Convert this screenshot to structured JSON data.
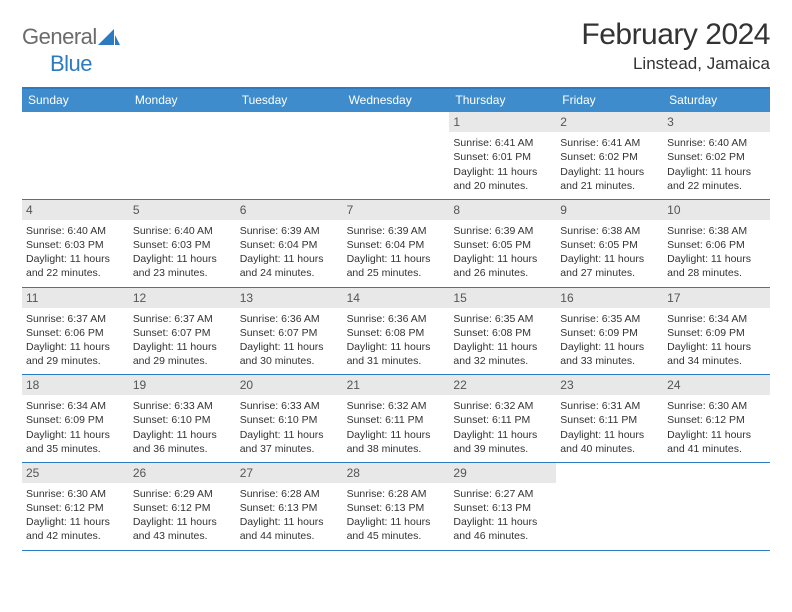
{
  "logo": {
    "general": "General",
    "blue": "Blue"
  },
  "title": "February 2024",
  "location": "Linstead, Jamaica",
  "dayNames": [
    "Sunday",
    "Monday",
    "Tuesday",
    "Wednesday",
    "Thursday",
    "Friday",
    "Saturday"
  ],
  "colors": {
    "header_bar": "#3e8ccc",
    "border": "#2c7bc0",
    "daynum_bg": "#e8e8e8",
    "text": "#333333",
    "logo_gray": "#6b6b6b",
    "logo_blue": "#2c7bc0",
    "background": "#ffffff"
  },
  "weeks": [
    [
      {
        "empty": true
      },
      {
        "empty": true
      },
      {
        "empty": true
      },
      {
        "empty": true
      },
      {
        "num": "1",
        "sunrise": "Sunrise: 6:41 AM",
        "sunset": "Sunset: 6:01 PM",
        "daylight": "Daylight: 11 hours and 20 minutes."
      },
      {
        "num": "2",
        "sunrise": "Sunrise: 6:41 AM",
        "sunset": "Sunset: 6:02 PM",
        "daylight": "Daylight: 11 hours and 21 minutes."
      },
      {
        "num": "3",
        "sunrise": "Sunrise: 6:40 AM",
        "sunset": "Sunset: 6:02 PM",
        "daylight": "Daylight: 11 hours and 22 minutes."
      }
    ],
    [
      {
        "num": "4",
        "sunrise": "Sunrise: 6:40 AM",
        "sunset": "Sunset: 6:03 PM",
        "daylight": "Daylight: 11 hours and 22 minutes."
      },
      {
        "num": "5",
        "sunrise": "Sunrise: 6:40 AM",
        "sunset": "Sunset: 6:03 PM",
        "daylight": "Daylight: 11 hours and 23 minutes."
      },
      {
        "num": "6",
        "sunrise": "Sunrise: 6:39 AM",
        "sunset": "Sunset: 6:04 PM",
        "daylight": "Daylight: 11 hours and 24 minutes."
      },
      {
        "num": "7",
        "sunrise": "Sunrise: 6:39 AM",
        "sunset": "Sunset: 6:04 PM",
        "daylight": "Daylight: 11 hours and 25 minutes."
      },
      {
        "num": "8",
        "sunrise": "Sunrise: 6:39 AM",
        "sunset": "Sunset: 6:05 PM",
        "daylight": "Daylight: 11 hours and 26 minutes."
      },
      {
        "num": "9",
        "sunrise": "Sunrise: 6:38 AM",
        "sunset": "Sunset: 6:05 PM",
        "daylight": "Daylight: 11 hours and 27 minutes."
      },
      {
        "num": "10",
        "sunrise": "Sunrise: 6:38 AM",
        "sunset": "Sunset: 6:06 PM",
        "daylight": "Daylight: 11 hours and 28 minutes."
      }
    ],
    [
      {
        "num": "11",
        "sunrise": "Sunrise: 6:37 AM",
        "sunset": "Sunset: 6:06 PM",
        "daylight": "Daylight: 11 hours and 29 minutes."
      },
      {
        "num": "12",
        "sunrise": "Sunrise: 6:37 AM",
        "sunset": "Sunset: 6:07 PM",
        "daylight": "Daylight: 11 hours and 29 minutes."
      },
      {
        "num": "13",
        "sunrise": "Sunrise: 6:36 AM",
        "sunset": "Sunset: 6:07 PM",
        "daylight": "Daylight: 11 hours and 30 minutes."
      },
      {
        "num": "14",
        "sunrise": "Sunrise: 6:36 AM",
        "sunset": "Sunset: 6:08 PM",
        "daylight": "Daylight: 11 hours and 31 minutes."
      },
      {
        "num": "15",
        "sunrise": "Sunrise: 6:35 AM",
        "sunset": "Sunset: 6:08 PM",
        "daylight": "Daylight: 11 hours and 32 minutes."
      },
      {
        "num": "16",
        "sunrise": "Sunrise: 6:35 AM",
        "sunset": "Sunset: 6:09 PM",
        "daylight": "Daylight: 11 hours and 33 minutes."
      },
      {
        "num": "17",
        "sunrise": "Sunrise: 6:34 AM",
        "sunset": "Sunset: 6:09 PM",
        "daylight": "Daylight: 11 hours and 34 minutes."
      }
    ],
    [
      {
        "num": "18",
        "sunrise": "Sunrise: 6:34 AM",
        "sunset": "Sunset: 6:09 PM",
        "daylight": "Daylight: 11 hours and 35 minutes."
      },
      {
        "num": "19",
        "sunrise": "Sunrise: 6:33 AM",
        "sunset": "Sunset: 6:10 PM",
        "daylight": "Daylight: 11 hours and 36 minutes."
      },
      {
        "num": "20",
        "sunrise": "Sunrise: 6:33 AM",
        "sunset": "Sunset: 6:10 PM",
        "daylight": "Daylight: 11 hours and 37 minutes."
      },
      {
        "num": "21",
        "sunrise": "Sunrise: 6:32 AM",
        "sunset": "Sunset: 6:11 PM",
        "daylight": "Daylight: 11 hours and 38 minutes."
      },
      {
        "num": "22",
        "sunrise": "Sunrise: 6:32 AM",
        "sunset": "Sunset: 6:11 PM",
        "daylight": "Daylight: 11 hours and 39 minutes."
      },
      {
        "num": "23",
        "sunrise": "Sunrise: 6:31 AM",
        "sunset": "Sunset: 6:11 PM",
        "daylight": "Daylight: 11 hours and 40 minutes."
      },
      {
        "num": "24",
        "sunrise": "Sunrise: 6:30 AM",
        "sunset": "Sunset: 6:12 PM",
        "daylight": "Daylight: 11 hours and 41 minutes."
      }
    ],
    [
      {
        "num": "25",
        "sunrise": "Sunrise: 6:30 AM",
        "sunset": "Sunset: 6:12 PM",
        "daylight": "Daylight: 11 hours and 42 minutes."
      },
      {
        "num": "26",
        "sunrise": "Sunrise: 6:29 AM",
        "sunset": "Sunset: 6:12 PM",
        "daylight": "Daylight: 11 hours and 43 minutes."
      },
      {
        "num": "27",
        "sunrise": "Sunrise: 6:28 AM",
        "sunset": "Sunset: 6:13 PM",
        "daylight": "Daylight: 11 hours and 44 minutes."
      },
      {
        "num": "28",
        "sunrise": "Sunrise: 6:28 AM",
        "sunset": "Sunset: 6:13 PM",
        "daylight": "Daylight: 11 hours and 45 minutes."
      },
      {
        "num": "29",
        "sunrise": "Sunrise: 6:27 AM",
        "sunset": "Sunset: 6:13 PM",
        "daylight": "Daylight: 11 hours and 46 minutes."
      },
      {
        "empty": true
      },
      {
        "empty": true
      }
    ]
  ]
}
